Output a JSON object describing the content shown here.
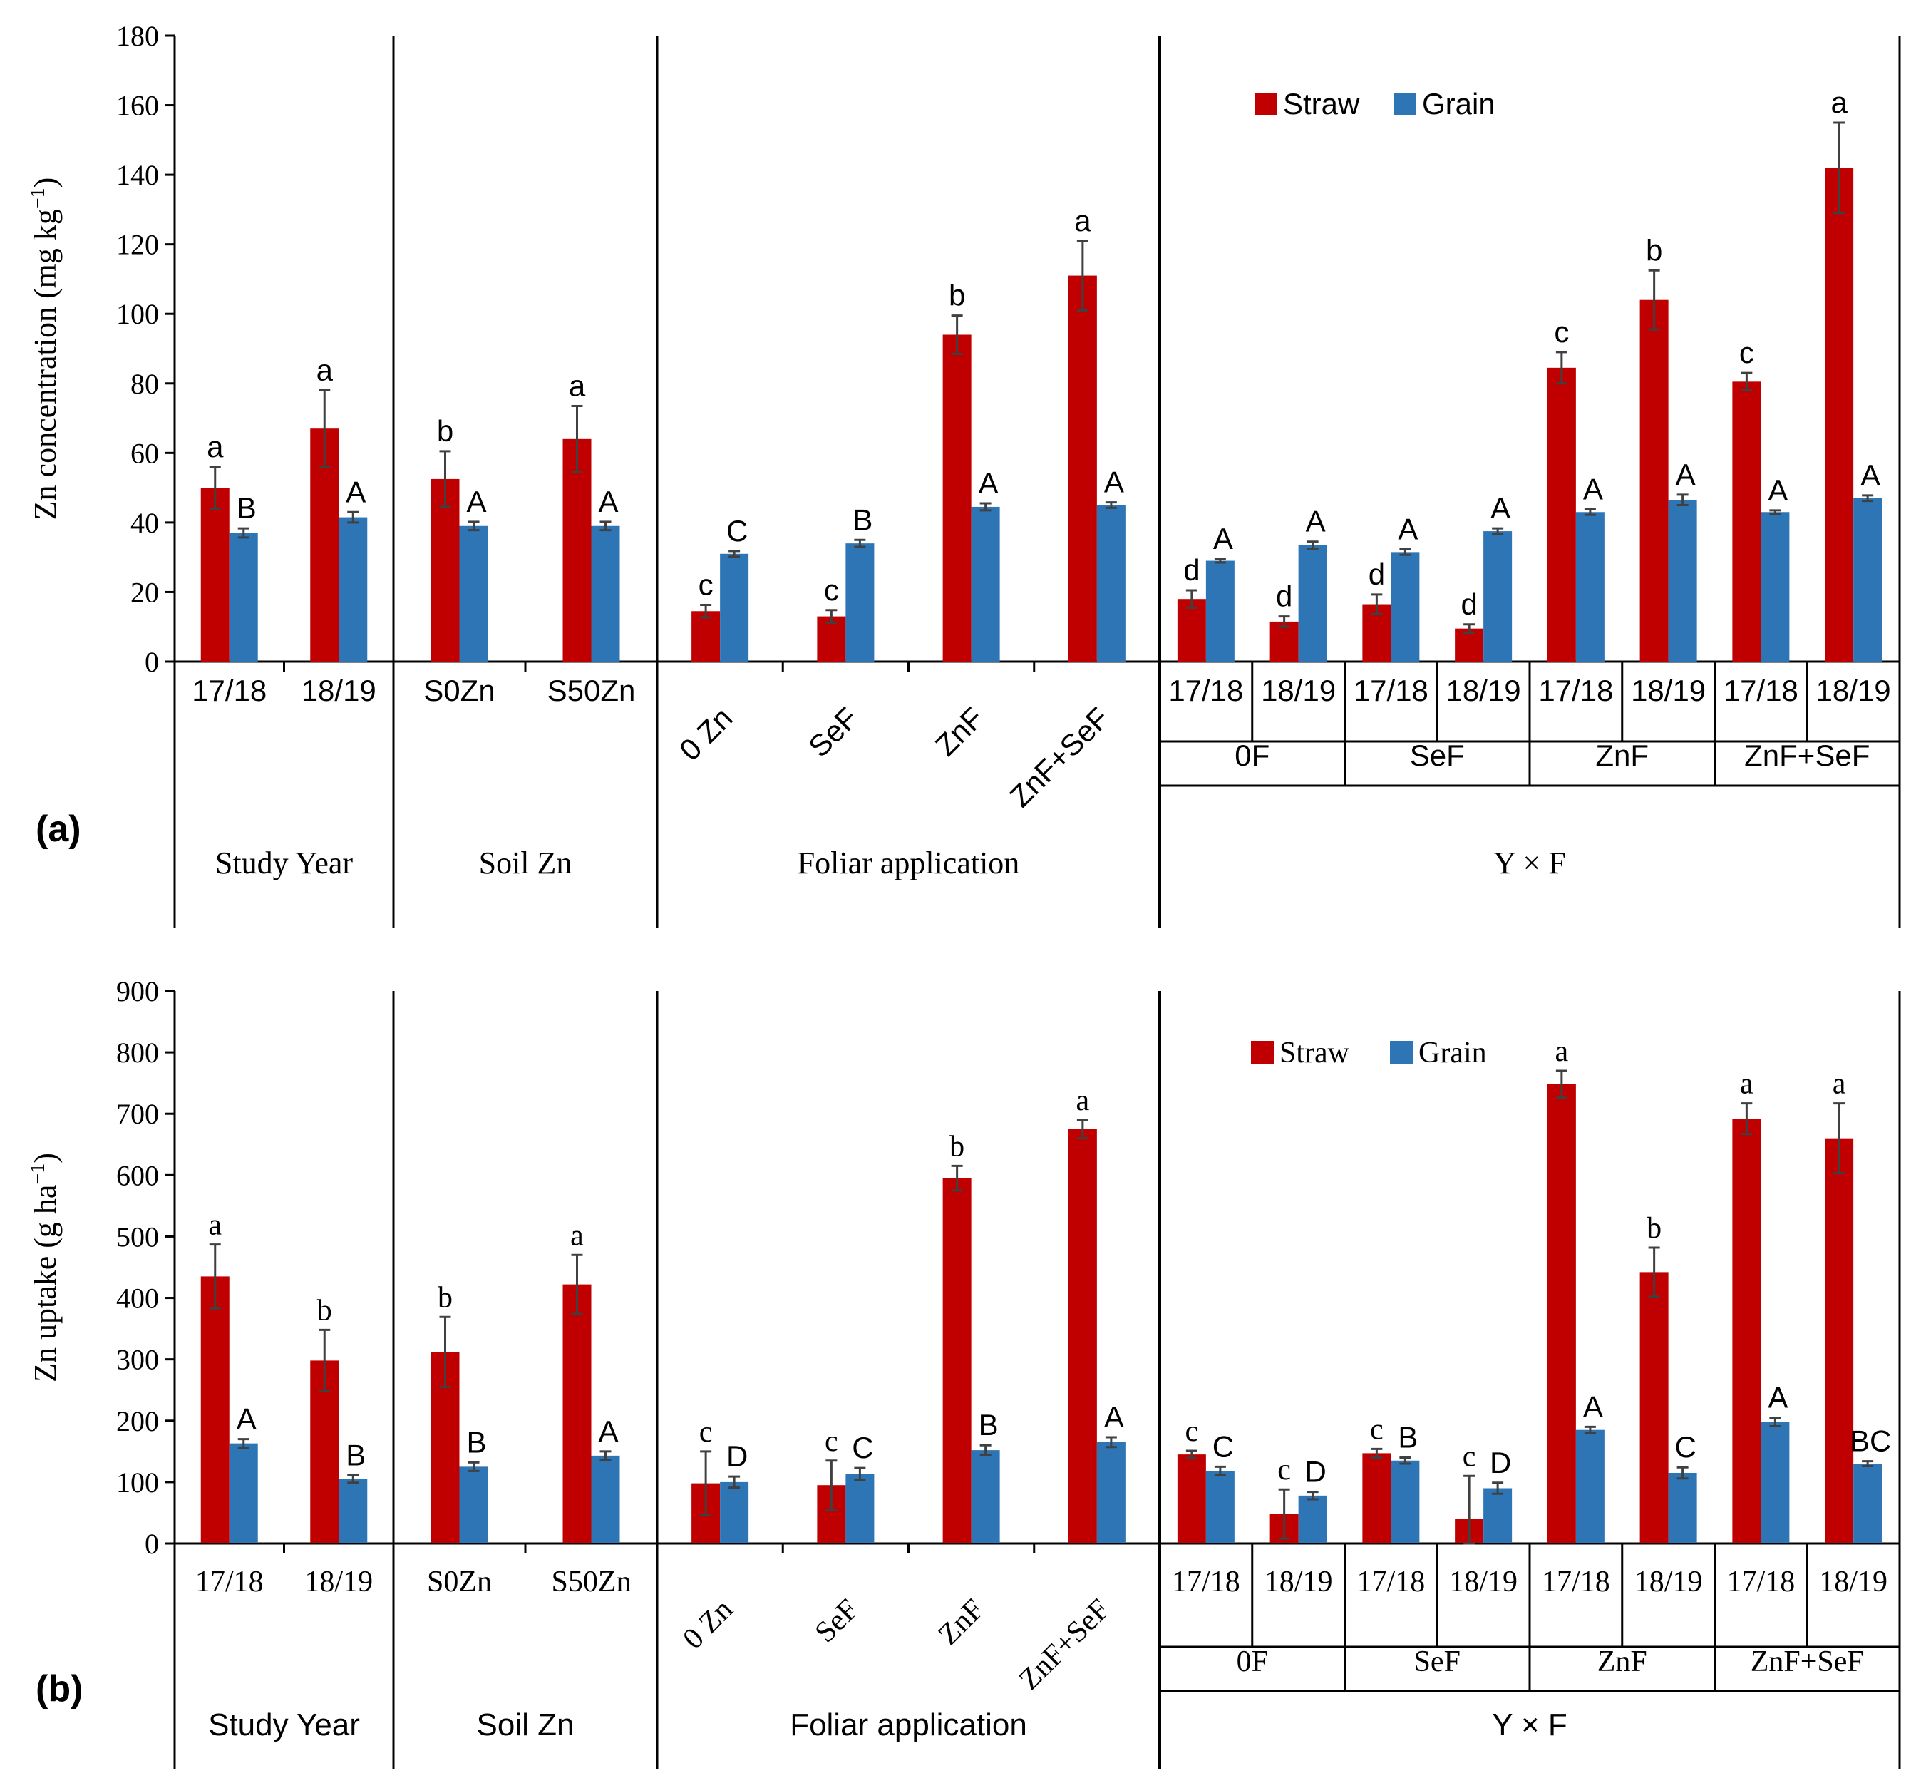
{
  "colors": {
    "straw": "#C00000",
    "grain": "#2E75B6",
    "error": "#404040",
    "axis": "#000000"
  },
  "chart_data": [
    {
      "type": "bar",
      "panel_label": "(a)",
      "ylabel": "Zn concentration (mg kg",
      "ylabel_sup": "−1",
      "ylabel_end": ")",
      "ylim": [
        0,
        180
      ],
      "ticks": [
        "0",
        "20",
        "40",
        "60",
        "80",
        "100",
        "120",
        "140",
        "160",
        "180"
      ],
      "grid": false,
      "legend": {
        "position": "top-right",
        "entries": [
          "Straw",
          "Grain"
        ]
      },
      "x_style": "sans",
      "sections": [
        {
          "name": "Study Year",
          "categories": [
            "17/18",
            "18/19"
          ],
          "rotated": false,
          "straw": [
            50,
            67
          ],
          "straw_err": [
            6,
            11
          ],
          "straw_letters": [
            "a",
            "a"
          ],
          "grain": [
            37,
            41.5
          ],
          "grain_err": [
            1.3,
            1.5
          ],
          "grain_letters": [
            "B",
            "A"
          ]
        },
        {
          "name": "Soil Zn",
          "categories": [
            "S0Zn",
            "S50Zn"
          ],
          "rotated": false,
          "straw": [
            52.5,
            64
          ],
          "straw_err": [
            8,
            9.5
          ],
          "straw_letters": [
            "b",
            "a"
          ],
          "grain": [
            39,
            39
          ],
          "grain_err": [
            1.2,
            1.2
          ],
          "grain_letters": [
            "A",
            "A"
          ]
        },
        {
          "name": "Foliar application",
          "categories": [
            "0 Zn",
            "SeF",
            "ZnF",
            "ZnF+SeF"
          ],
          "rotated": true,
          "straw": [
            14.5,
            13,
            94,
            111
          ],
          "straw_err": [
            1.8,
            1.8,
            5.5,
            10
          ],
          "straw_letters": [
            "c",
            "c",
            "b",
            "a"
          ],
          "grain": [
            31,
            34,
            44.5,
            45
          ],
          "grain_err": [
            0.8,
            1,
            1,
            0.8
          ],
          "grain_letters": [
            "C",
            "B",
            "A",
            "A"
          ]
        },
        {
          "name": "Y × F",
          "categories": [
            "17/18",
            "18/19",
            "17/18",
            "18/19",
            "17/18",
            "18/19",
            "17/18",
            "18/19"
          ],
          "subgroups": [
            "0F",
            "SeF",
            "ZnF",
            "ZnF+SeF"
          ],
          "rotated": false,
          "straw": [
            18,
            11.5,
            16.5,
            9.5,
            84.5,
            104,
            80.5,
            142
          ],
          "straw_err": [
            2.5,
            1.5,
            2.8,
            1.2,
            4.5,
            8.5,
            2.5,
            13
          ],
          "straw_letters": [
            "d",
            "d",
            "d",
            "d",
            "c",
            "b",
            "c",
            "a"
          ],
          "grain": [
            29,
            33.5,
            31.5,
            37.5,
            43,
            46.5,
            43,
            47
          ],
          "grain_err": [
            0.5,
            1,
            0.8,
            0.8,
            0.8,
            1.5,
            0.5,
            0.8
          ],
          "grain_letters": [
            "A",
            "A",
            "A",
            "A",
            "A",
            "A",
            "A",
            "A"
          ]
        }
      ]
    },
    {
      "type": "bar",
      "panel_label": "(b)",
      "ylabel": "Zn uptake (g ha",
      "ylabel_sup": "−1",
      "ylabel_end": ")",
      "ylim": [
        0,
        900
      ],
      "ticks": [
        "0",
        "100",
        "200",
        "300",
        "400",
        "500",
        "600",
        "700",
        "800",
        "900"
      ],
      "grid": false,
      "legend": {
        "position": "top-right",
        "entries": [
          "Straw",
          "Grain"
        ]
      },
      "x_style": "serif",
      "sections": [
        {
          "name": "Study Year",
          "categories": [
            "17/18",
            "18/19"
          ],
          "rotated": false,
          "straw": [
            435,
            298
          ],
          "straw_err": [
            52,
            50
          ],
          "straw_letters": [
            "a",
            "b"
          ],
          "grain": [
            163,
            105
          ],
          "grain_err": [
            7,
            6
          ],
          "grain_letters": [
            "A",
            "B"
          ]
        },
        {
          "name": "Soil Zn",
          "categories": [
            "S0Zn",
            "S50Zn"
          ],
          "rotated": false,
          "straw": [
            312,
            422
          ],
          "straw_err": [
            57,
            48
          ],
          "straw_letters": [
            "b",
            "a"
          ],
          "grain": [
            125,
            143
          ],
          "grain_err": [
            7,
            7
          ],
          "grain_letters": [
            "B",
            "A"
          ]
        },
        {
          "name": "Foliar application",
          "categories": [
            "0 Zn",
            "SeF",
            "ZnF",
            "ZnF+SeF"
          ],
          "rotated": true,
          "straw": [
            98,
            95,
            595,
            675
          ],
          "straw_err": [
            52,
            40,
            20,
            15
          ],
          "straw_letters": [
            "c",
            "c",
            "b",
            "a"
          ],
          "grain": [
            100,
            113,
            152,
            165
          ],
          "grain_err": [
            9,
            10,
            8,
            8
          ],
          "grain_letters": [
            "D",
            "C",
            "B",
            "A"
          ]
        },
        {
          "name": "Y × F",
          "categories": [
            "17/18",
            "18/19",
            "17/18",
            "18/19",
            "17/18",
            "18/19",
            "17/18",
            "18/19"
          ],
          "subgroups": [
            "0F",
            "SeF",
            "ZnF",
            "ZnF+SeF"
          ],
          "rotated": false,
          "straw": [
            145,
            48,
            147,
            40,
            748,
            442,
            692,
            660
          ],
          "straw_err": [
            6,
            40,
            7,
            70,
            22,
            40,
            25,
            57
          ],
          "straw_letters": [
            "c",
            "c",
            "c",
            "c",
            "a",
            "b",
            "a",
            "a"
          ],
          "grain": [
            118,
            78,
            135,
            90,
            185,
            115,
            198,
            130
          ],
          "grain_err": [
            7,
            6,
            5,
            9,
            5,
            9,
            7,
            4
          ],
          "grain_letters": [
            "C",
            "D",
            "B",
            "D",
            "A",
            "C",
            "A",
            "BC"
          ]
        }
      ]
    }
  ]
}
